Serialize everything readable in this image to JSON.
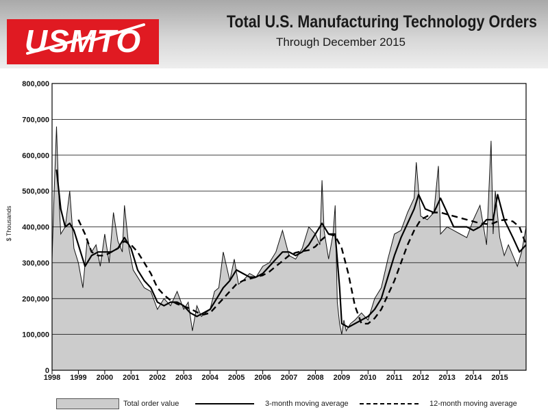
{
  "logo": {
    "text": "USMTO"
  },
  "header": {
    "title": "Total U.S. Manufacturing Technology Orders",
    "subtitle": "Through December 2015"
  },
  "legend": {
    "total": "Total order value",
    "ma3": "3-month moving average",
    "ma12": "12-month moving average"
  },
  "colors": {
    "logo_red": "#e01a22",
    "area_fill": "#cccccc",
    "line": "#000000",
    "grid": "#000000"
  },
  "chart_data": {
    "type": "line",
    "title": "Total U.S. Manufacturing Technology Orders",
    "subtitle": "Through December 2015",
    "xlabel": "",
    "ylabel": "$ Thousands",
    "ylim": [
      0,
      800000
    ],
    "xlim": [
      1998,
      2016
    ],
    "y_ticks": [
      0,
      100000,
      200000,
      300000,
      400000,
      500000,
      600000,
      700000,
      800000
    ],
    "y_tick_labels": [
      "0",
      "100,000",
      "200,000",
      "300,000",
      "400,000",
      "500,000",
      "600,000",
      "700,000",
      "800,000"
    ],
    "x_tick_labels": [
      "1998",
      "1999",
      "2000",
      "2001",
      "2002",
      "2003",
      "2004",
      "2005",
      "2006",
      "2007",
      "2008",
      "2009",
      "2010",
      "2011",
      "2012",
      "2013",
      "2014",
      "2015"
    ],
    "grid": "horizontal",
    "series": [
      {
        "name": "Total order value",
        "style": "area",
        "x": [
          1998.0,
          1998.08,
          1998.17,
          1998.25,
          1998.33,
          1998.5,
          1998.67,
          1998.83,
          1999.0,
          1999.17,
          1999.33,
          1999.5,
          1999.67,
          1999.83,
          2000.0,
          2000.17,
          2000.33,
          2000.5,
          2000.67,
          2000.75,
          2000.92,
          2001.08,
          2001.25,
          2001.5,
          2001.75,
          2002.0,
          2002.25,
          2002.5,
          2002.75,
          2003.0,
          2003.17,
          2003.33,
          2003.5,
          2003.67,
          2003.83,
          2004.0,
          2004.17,
          2004.33,
          2004.5,
          2004.75,
          2004.92,
          2005.08,
          2005.25,
          2005.5,
          2005.75,
          2006.0,
          2006.25,
          2006.5,
          2006.75,
          2007.0,
          2007.25,
          2007.5,
          2007.75,
          2008.0,
          2008.17,
          2008.25,
          2008.33,
          2008.5,
          2008.67,
          2008.75,
          2008.83,
          2008.92,
          2009.0,
          2009.08,
          2009.17,
          2009.33,
          2009.5,
          2009.75,
          2010.0,
          2010.25,
          2010.5,
          2010.75,
          2011.0,
          2011.25,
          2011.5,
          2011.75,
          2011.83,
          2012.0,
          2012.25,
          2012.5,
          2012.67,
          2012.75,
          2013.0,
          2013.25,
          2013.5,
          2013.75,
          2014.0,
          2014.25,
          2014.5,
          2014.67,
          2014.75,
          2014.83,
          2015.0,
          2015.17,
          2015.33,
          2015.5,
          2015.67,
          2015.83,
          2016.0
        ],
        "values": [
          310000,
          500000,
          680000,
          500000,
          380000,
          400000,
          500000,
          340000,
          300000,
          230000,
          360000,
          330000,
          350000,
          290000,
          380000,
          300000,
          440000,
          360000,
          330000,
          460000,
          340000,
          280000,
          260000,
          230000,
          220000,
          170000,
          200000,
          180000,
          220000,
          170000,
          190000,
          110000,
          180000,
          150000,
          160000,
          170000,
          220000,
          230000,
          330000,
          250000,
          310000,
          240000,
          250000,
          270000,
          260000,
          290000,
          300000,
          330000,
          390000,
          320000,
          310000,
          340000,
          400000,
          380000,
          350000,
          530000,
          390000,
          310000,
          380000,
          460000,
          190000,
          130000,
          100000,
          140000,
          110000,
          130000,
          140000,
          160000,
          140000,
          200000,
          230000,
          310000,
          380000,
          390000,
          440000,
          480000,
          580000,
          430000,
          420000,
          440000,
          570000,
          380000,
          400000,
          390000,
          380000,
          370000,
          420000,
          460000,
          350000,
          640000,
          380000,
          500000,
          370000,
          320000,
          350000,
          320000,
          290000,
          330000,
          400000
        ]
      },
      {
        "name": "3-month moving average",
        "style": "solid",
        "x": [
          1998.17,
          1998.33,
          1998.5,
          1998.67,
          1998.83,
          1999.0,
          1999.25,
          1999.5,
          1999.75,
          2000.0,
          2000.25,
          2000.5,
          2000.75,
          2001.0,
          2001.25,
          2001.5,
          2001.75,
          2002.0,
          2002.25,
          2002.5,
          2002.75,
          2003.0,
          2003.25,
          2003.5,
          2003.75,
          2004.0,
          2004.25,
          2004.5,
          2004.75,
          2005.0,
          2005.25,
          2005.5,
          2005.75,
          2006.0,
          2006.25,
          2006.5,
          2006.75,
          2007.0,
          2007.25,
          2007.5,
          2007.75,
          2008.0,
          2008.25,
          2008.5,
          2008.75,
          2008.92,
          2009.0,
          2009.25,
          2009.5,
          2009.75,
          2010.0,
          2010.25,
          2010.5,
          2010.75,
          2011.0,
          2011.25,
          2011.5,
          2011.75,
          2011.92,
          2012.17,
          2012.5,
          2012.75,
          2013.0,
          2013.25,
          2013.5,
          2013.75,
          2014.0,
          2014.25,
          2014.5,
          2014.75,
          2014.92,
          2015.17,
          2015.5,
          2015.75,
          2016.0
        ],
        "values": [
          560000,
          450000,
          400000,
          410000,
          390000,
          350000,
          290000,
          320000,
          330000,
          330000,
          330000,
          340000,
          370000,
          340000,
          280000,
          250000,
          230000,
          190000,
          180000,
          190000,
          190000,
          180000,
          160000,
          150000,
          160000,
          170000,
          200000,
          230000,
          250000,
          280000,
          270000,
          260000,
          260000,
          270000,
          290000,
          310000,
          330000,
          330000,
          320000,
          330000,
          350000,
          380000,
          410000,
          380000,
          380000,
          230000,
          130000,
          120000,
          130000,
          140000,
          150000,
          170000,
          200000,
          260000,
          320000,
          370000,
          410000,
          450000,
          490000,
          450000,
          440000,
          480000,
          440000,
          400000,
          400000,
          400000,
          390000,
          400000,
          420000,
          420000,
          490000,
          420000,
          370000,
          330000,
          350000
        ]
      },
      {
        "name": "12-month moving average",
        "style": "dashed",
        "x": [
          1999.0,
          1999.25,
          1999.5,
          1999.75,
          2000.0,
          2000.25,
          2000.5,
          2000.75,
          2001.0,
          2001.25,
          2001.5,
          2001.75,
          2002.0,
          2002.25,
          2002.5,
          2002.75,
          2003.0,
          2003.25,
          2003.5,
          2003.75,
          2004.0,
          2004.25,
          2004.5,
          2004.75,
          2005.0,
          2005.25,
          2005.5,
          2005.75,
          2006.0,
          2006.25,
          2006.5,
          2006.75,
          2007.0,
          2007.25,
          2007.5,
          2007.75,
          2008.0,
          2008.25,
          2008.5,
          2008.75,
          2009.0,
          2009.25,
          2009.5,
          2009.75,
          2010.0,
          2010.25,
          2010.5,
          2010.75,
          2011.0,
          2011.25,
          2011.5,
          2011.75,
          2012.0,
          2012.25,
          2012.5,
          2012.75,
          2013.0,
          2013.25,
          2013.5,
          2013.75,
          2014.0,
          2014.25,
          2014.5,
          2014.75,
          2015.0,
          2015.25,
          2015.5,
          2015.75,
          2016.0
        ],
        "values": [
          420000,
          380000,
          330000,
          320000,
          320000,
          330000,
          340000,
          360000,
          350000,
          330000,
          300000,
          270000,
          230000,
          210000,
          195000,
          185000,
          178000,
          172000,
          162000,
          155000,
          160000,
          180000,
          200000,
          220000,
          240000,
          250000,
          255000,
          260000,
          265000,
          275000,
          290000,
          305000,
          320000,
          328000,
          332000,
          335000,
          345000,
          365000,
          380000,
          375000,
          340000,
          270000,
          180000,
          130000,
          130000,
          145000,
          170000,
          210000,
          250000,
          300000,
          350000,
          390000,
          420000,
          430000,
          440000,
          440000,
          435000,
          430000,
          425000,
          420000,
          415000,
          410000,
          408000,
          410000,
          418000,
          420000,
          415000,
          400000,
          350000
        ]
      }
    ]
  }
}
